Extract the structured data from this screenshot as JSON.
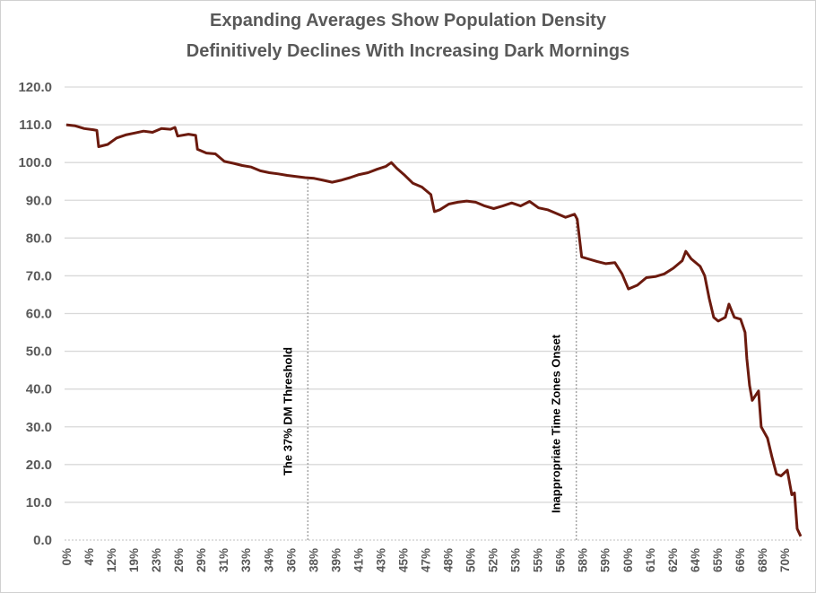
{
  "chart_data": {
    "type": "line",
    "title": [
      "Expanding Averages Show Population Density",
      "Definitively Declines  With Increasing Dark Mornings"
    ],
    "xlabel": "",
    "ylabel": "",
    "ylim": [
      0,
      120
    ],
    "yticks": [
      "0.0",
      "10.0",
      "20.0",
      "30.0",
      "40.0",
      "50.0",
      "60.0",
      "70.0",
      "80.0",
      "90.0",
      "100.0",
      "110.0",
      "120.0"
    ],
    "categories": [
      "0%",
      "4%",
      "12%",
      "19%",
      "23%",
      "26%",
      "29%",
      "31%",
      "33%",
      "34%",
      "36%",
      "38%",
      "39%",
      "41%",
      "43%",
      "45%",
      "47%",
      "48%",
      "50%",
      "52%",
      "53%",
      "55%",
      "56%",
      "58%",
      "59%",
      "60%",
      "61%",
      "62%",
      "64%",
      "65%",
      "66%",
      "68%",
      "70%"
    ],
    "grid": true,
    "line_color": "#6b1a0e",
    "series": [
      {
        "points": [
          [
            0,
            110
          ],
          [
            0.4,
            109.7
          ],
          [
            0.8,
            109
          ],
          [
            1.2,
            108.7
          ],
          [
            1.36,
            108.5
          ],
          [
            1.44,
            104.2
          ],
          [
            1.84,
            104.8
          ],
          [
            2.24,
            106.5
          ],
          [
            2.64,
            107.3
          ],
          [
            3.04,
            107.8
          ],
          [
            3.44,
            108.3
          ],
          [
            3.84,
            108
          ],
          [
            4.24,
            109
          ],
          [
            4.64,
            108.8
          ],
          [
            4.84,
            109.3
          ],
          [
            4.96,
            107
          ],
          [
            5.44,
            107.5
          ],
          [
            5.76,
            107.2
          ],
          [
            5.84,
            103.5
          ],
          [
            6.24,
            102.5
          ],
          [
            6.64,
            102.3
          ],
          [
            7.04,
            100.3
          ],
          [
            7.44,
            99.8
          ],
          [
            7.84,
            99.2
          ],
          [
            8.24,
            98.8
          ],
          [
            8.64,
            97.8
          ],
          [
            9.04,
            97.3
          ],
          [
            9.44,
            97
          ],
          [
            9.84,
            96.6
          ],
          [
            10.24,
            96.3
          ],
          [
            10.64,
            96
          ],
          [
            11.04,
            95.8
          ],
          [
            11.44,
            95.3
          ],
          [
            11.84,
            94.8
          ],
          [
            12.24,
            95.3
          ],
          [
            12.64,
            96
          ],
          [
            13.04,
            96.8
          ],
          [
            13.44,
            97.3
          ],
          [
            13.84,
            98.2
          ],
          [
            14.24,
            99
          ],
          [
            14.48,
            100
          ],
          [
            14.72,
            98.5
          ],
          [
            15.04,
            96.8
          ],
          [
            15.44,
            94.5
          ],
          [
            15.84,
            93.5
          ],
          [
            16.24,
            91.5
          ],
          [
            16.4,
            87
          ],
          [
            16.64,
            87.5
          ],
          [
            17.04,
            89
          ],
          [
            17.44,
            89.5
          ],
          [
            17.84,
            89.8
          ],
          [
            18.24,
            89.5
          ],
          [
            18.64,
            88.5
          ],
          [
            19.04,
            87.8
          ],
          [
            19.44,
            88.5
          ],
          [
            19.84,
            89.3
          ],
          [
            20.24,
            88.5
          ],
          [
            20.64,
            89.7
          ],
          [
            21.04,
            88
          ],
          [
            21.44,
            87.5
          ],
          [
            21.84,
            86.5
          ],
          [
            22.24,
            85.5
          ],
          [
            22.64,
            86.3
          ],
          [
            22.76,
            85
          ],
          [
            22.96,
            75
          ],
          [
            23.24,
            74.5
          ],
          [
            23.64,
            73.8
          ],
          [
            24.04,
            73.2
          ],
          [
            24.44,
            73.5
          ],
          [
            24.76,
            70.5
          ],
          [
            25.04,
            66.5
          ],
          [
            25.44,
            67.5
          ],
          [
            25.84,
            69.5
          ],
          [
            26.24,
            69.8
          ],
          [
            26.64,
            70.5
          ],
          [
            27.04,
            72
          ],
          [
            27.44,
            74
          ],
          [
            27.6,
            76.5
          ],
          [
            27.84,
            74.5
          ],
          [
            28.24,
            72.5
          ],
          [
            28.44,
            70
          ],
          [
            28.64,
            64
          ],
          [
            28.84,
            59
          ],
          [
            29.04,
            58
          ],
          [
            29.36,
            59
          ],
          [
            29.52,
            62.5
          ],
          [
            29.76,
            59
          ],
          [
            30.04,
            58.5
          ],
          [
            30.24,
            55
          ],
          [
            30.32,
            48
          ],
          [
            30.44,
            41
          ],
          [
            30.56,
            37
          ],
          [
            30.84,
            39.5
          ],
          [
            30.96,
            30
          ],
          [
            31.24,
            27
          ],
          [
            31.44,
            22
          ],
          [
            31.64,
            17.5
          ],
          [
            31.84,
            17
          ],
          [
            32.12,
            18.5
          ],
          [
            32.32,
            12
          ],
          [
            32.44,
            12.5
          ],
          [
            32.56,
            3
          ],
          [
            32.72,
            1
          ]
        ]
      }
    ],
    "annotations": [
      {
        "text": "The 37% DM Threshold",
        "x": 10.76,
        "y_top": 96
      },
      {
        "text": "Inappropriate Time Zones Onset",
        "x": 22.72,
        "y_top": 86
      }
    ]
  }
}
